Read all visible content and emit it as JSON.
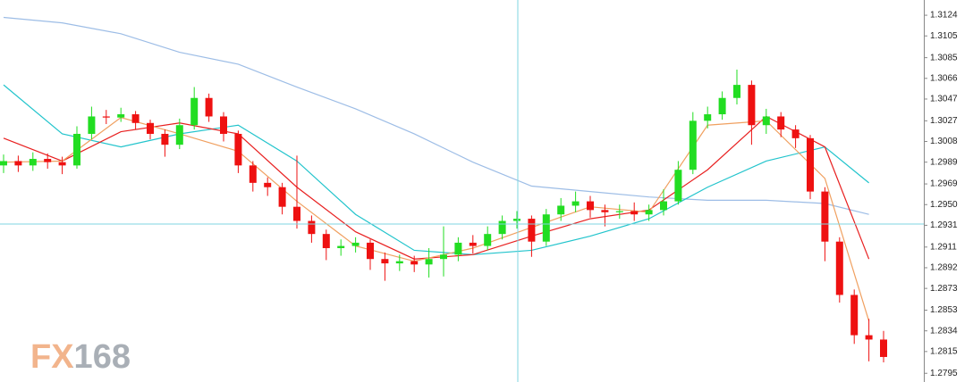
{
  "chart_data": {
    "type": "candlestick",
    "watermark": "FX168",
    "up_color": "#22dd22",
    "down_color": "#ee1111",
    "ylim": [
      1.2787,
      1.3138
    ],
    "yticks": [
      1.3124,
      1.3105,
      1.3085,
      1.3066,
      1.3047,
      1.3027,
      1.3008,
      1.2989,
      1.2969,
      {
        "value": 1.295,
        "label": "1.2950"
      },
      1.2931,
      1.2911,
      1.2892,
      1.2873,
      1.2853,
      1.2834,
      1.2815,
      1.2795
    ],
    "candles": [
      [
        1.2986,
        1.2996,
        1.2979,
        1.299
      ],
      [
        1.299,
        1.2995,
        1.298,
        1.2986
      ],
      [
        1.2986,
        1.2998,
        1.2981,
        1.2992
      ],
      [
        1.2992,
        1.2997,
        1.2983,
        1.2989
      ],
      [
        1.2989,
        1.2994,
        1.2978,
        1.2986
      ],
      [
        1.2986,
        1.3022,
        1.2983,
        1.3015
      ],
      [
        1.3015,
        1.304,
        1.301,
        1.3031
      ],
      [
        1.3031,
        1.3037,
        1.3024,
        1.303
      ],
      [
        1.303,
        1.3039,
        1.3026,
        1.3033
      ],
      [
        1.3033,
        1.3036,
        1.3019,
        1.3025
      ],
      [
        1.3025,
        1.3028,
        1.301,
        1.3015
      ],
      [
        1.3015,
        1.3019,
        1.2994,
        1.3005
      ],
      [
        1.3005,
        1.3029,
        1.3001,
        1.3023
      ],
      [
        1.3023,
        1.3058,
        1.3019,
        1.3048
      ],
      [
        1.3048,
        1.3052,
        1.3026,
        1.3031
      ],
      [
        1.3031,
        1.3035,
        1.3008,
        1.3015
      ],
      [
        1.3015,
        1.3018,
        1.2979,
        1.2986
      ],
      [
        1.2986,
        1.299,
        1.2962,
        1.297
      ],
      [
        1.297,
        1.2975,
        1.2958,
        1.2966
      ],
      [
        1.2966,
        1.297,
        1.2941,
        1.2948
      ],
      [
        1.2948,
        1.2995,
        1.2928,
        1.2935
      ],
      [
        1.2935,
        1.294,
        1.2915,
        1.2923
      ],
      [
        1.2923,
        1.2927,
        1.2899,
        1.291
      ],
      [
        1.291,
        1.2918,
        1.2903,
        1.2912
      ],
      [
        1.2912,
        1.292,
        1.2906,
        1.2915
      ],
      [
        1.2915,
        1.2918,
        1.289,
        1.29
      ],
      [
        1.29,
        1.2906,
        1.288,
        1.2896
      ],
      [
        1.2896,
        1.2904,
        1.2889,
        1.2898
      ],
      [
        1.2898,
        1.2903,
        1.2888,
        1.2895
      ],
      [
        1.2895,
        1.291,
        1.2883,
        1.29
      ],
      [
        1.29,
        1.293,
        1.2884,
        1.2904
      ],
      [
        1.2904,
        1.292,
        1.2898,
        1.2915
      ],
      [
        1.2915,
        1.2922,
        1.2905,
        1.2912
      ],
      [
        1.2912,
        1.293,
        1.2908,
        1.2923
      ],
      [
        1.2923,
        1.294,
        1.2918,
        1.2935
      ],
      [
        1.2935,
        1.2944,
        1.2928,
        1.2937
      ],
      [
        1.2937,
        1.294,
        1.2902,
        1.2916
      ],
      [
        1.2916,
        1.2946,
        1.2912,
        1.2941
      ],
      [
        1.2941,
        1.2956,
        1.2935,
        1.2949
      ],
      [
        1.2949,
        1.2962,
        1.2943,
        1.2953
      ],
      [
        1.2953,
        1.2958,
        1.2938,
        1.2945
      ],
      [
        1.2945,
        1.295,
        1.293,
        1.2943
      ],
      [
        1.2943,
        1.295,
        1.2937,
        1.2944
      ],
      [
        1.2944,
        1.2952,
        1.2935,
        1.2941
      ],
      [
        1.2941,
        1.295,
        1.2935,
        1.2945
      ],
      [
        1.2945,
        1.2964,
        1.294,
        1.2953
      ],
      [
        1.2953,
        1.299,
        1.295,
        1.2982
      ],
      [
        1.2982,
        1.3035,
        1.2978,
        1.3027
      ],
      [
        1.3027,
        1.304,
        1.302,
        1.3033
      ],
      [
        1.3033,
        1.3054,
        1.3028,
        1.3048
      ],
      [
        1.3048,
        1.3074,
        1.3042,
        1.306
      ],
      [
        1.306,
        1.3064,
        1.3005,
        1.3023
      ],
      [
        1.3023,
        1.3038,
        1.3015,
        1.3031
      ],
      [
        1.3031,
        1.3035,
        1.3012,
        1.3019
      ],
      [
        1.3019,
        1.3023,
        1.3002,
        1.3011
      ],
      [
        1.3011,
        1.3014,
        1.2955,
        1.2962
      ],
      [
        1.2962,
        1.2966,
        1.2898,
        1.2916
      ],
      [
        1.2916,
        1.292,
        1.286,
        1.2867
      ],
      [
        1.2867,
        1.2872,
        1.2822,
        1.283
      ],
      [
        1.283,
        1.2845,
        1.2806,
        1.2826
      ],
      [
        1.2826,
        1.2834,
        1.2805,
        1.281
      ]
    ],
    "series": [
      {
        "color": "#9dbde6",
        "x": [
          0,
          4,
          8,
          12,
          16,
          20,
          24,
          28,
          32,
          36,
          40,
          44,
          48,
          52,
          56,
          59
        ],
        "values": [
          1.3122,
          1.3117,
          1.3107,
          1.309,
          1.3079,
          1.3058,
          1.3038,
          1.3015,
          1.2989,
          1.2967,
          1.2962,
          1.2957,
          1.2954,
          1.2954,
          1.2951,
          1.2941
        ]
      },
      {
        "color": "#22c4cc",
        "x": [
          0,
          4,
          8,
          12,
          16,
          20,
          24,
          28,
          32,
          36,
          40,
          44,
          48,
          52,
          56,
          59
        ],
        "values": [
          1.306,
          1.3015,
          1.3003,
          1.3015,
          1.3023,
          1.299,
          1.2941,
          1.2908,
          1.2904,
          1.2908,
          1.2921,
          1.2937,
          1.2966,
          1.299,
          1.3003,
          1.297
        ]
      },
      {
        "color": "#e82020",
        "x": [
          0,
          4,
          8,
          12,
          16,
          20,
          24,
          28,
          32,
          36,
          40,
          44,
          48,
          52,
          56,
          59
        ],
        "values": [
          1.3011,
          1.299,
          1.3017,
          1.3025,
          1.3015,
          1.2966,
          1.2925,
          1.29,
          1.2904,
          1.2921,
          1.2937,
          1.2945,
          1.2982,
          1.3031,
          1.3003,
          1.29
        ]
      },
      {
        "color": "#f0a060",
        "x": [
          0,
          4,
          8,
          12,
          16,
          20,
          24,
          28,
          32,
          36,
          40,
          44,
          48,
          52,
          56,
          59
        ],
        "values": [
          1.2989,
          1.299,
          1.303,
          1.3015,
          1.2999,
          1.2953,
          1.2912,
          1.2898,
          1.291,
          1.2929,
          1.2948,
          1.2943,
          1.3023,
          1.3027,
          1.2974,
          1.2843
        ]
      }
    ]
  }
}
